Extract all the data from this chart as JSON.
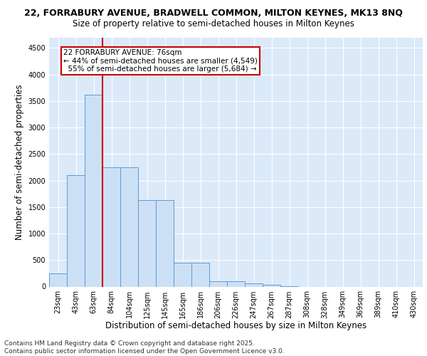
{
  "title_line1": "22, FORRABURY AVENUE, BRADWELL COMMON, MILTON KEYNES, MK13 8NQ",
  "title_line2": "Size of property relative to semi-detached houses in Milton Keynes",
  "xlabel": "Distribution of semi-detached houses by size in Milton Keynes",
  "ylabel": "Number of semi-detached properties",
  "footer": "Contains HM Land Registry data © Crown copyright and database right 2025.\nContains public sector information licensed under the Open Government Licence v3.0.",
  "categories": [
    "23sqm",
    "43sqm",
    "63sqm",
    "84sqm",
    "104sqm",
    "125sqm",
    "145sqm",
    "165sqm",
    "186sqm",
    "206sqm",
    "226sqm",
    "247sqm",
    "267sqm",
    "287sqm",
    "308sqm",
    "328sqm",
    "349sqm",
    "369sqm",
    "389sqm",
    "410sqm",
    "430sqm"
  ],
  "values": [
    250,
    2100,
    3625,
    2250,
    2250,
    1625,
    1625,
    450,
    450,
    100,
    100,
    65,
    30,
    10,
    0,
    0,
    0,
    0,
    0,
    0,
    0
  ],
  "bar_color": "#cce0f5",
  "bar_edge_color": "#5b9bd5",
  "bar_width": 1.0,
  "property_size_label": "22 FORRABURY AVENUE: 76sqm",
  "pct_smaller": "44% of semi-detached houses are smaller (4,549)",
  "pct_larger": "55% of semi-detached houses are larger (5,684)",
  "vline_color": "#cc0000",
  "annotation_box_edge": "#cc0000",
  "ylim": [
    0,
    4700
  ],
  "yticks": [
    0,
    500,
    1000,
    1500,
    2000,
    2500,
    3000,
    3500,
    4000,
    4500
  ],
  "plot_bg": "#dce9f8",
  "fig_bg": "#ffffff",
  "grid_color": "#ffffff",
  "title_fontsize": 9,
  "subtitle_fontsize": 8.5,
  "tick_fontsize": 7,
  "label_fontsize": 8.5,
  "footer_fontsize": 6.5,
  "annot_fontsize": 7.5,
  "vline_x_index": 2.5
}
